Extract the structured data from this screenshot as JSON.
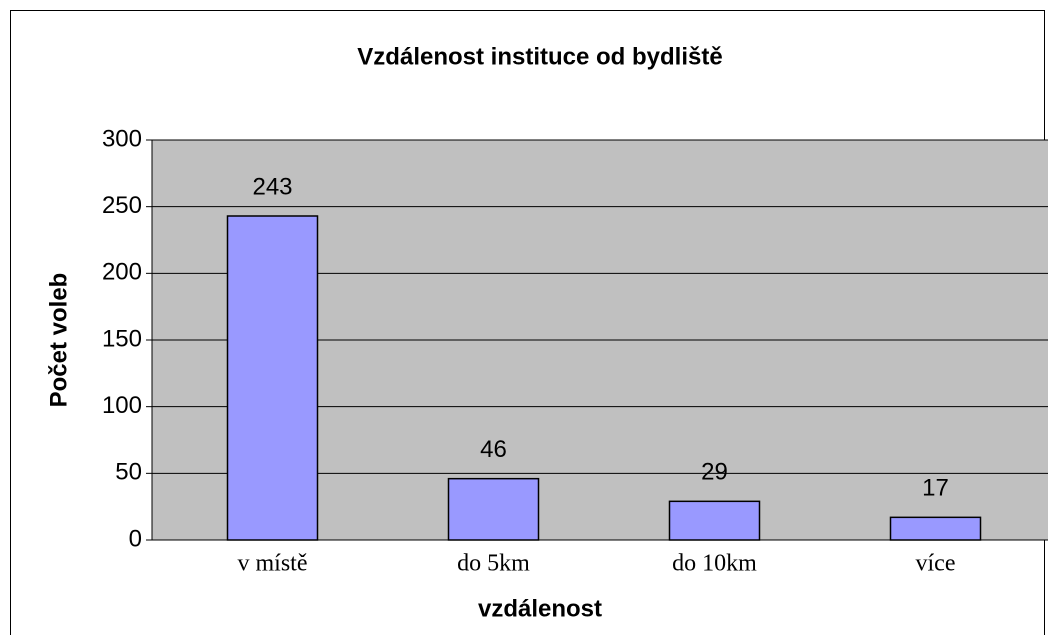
{
  "chart_data": {
    "type": "bar",
    "title": "Vzdálenost instituce od bydliště",
    "x_label": "vzdálenost",
    "y_label": "Počet voleb",
    "categories": [
      "v místě",
      "do 5km",
      "do 10km",
      "více"
    ],
    "values": [
      243,
      46,
      29,
      17
    ],
    "color": "#9999ff",
    "ylim": [
      0,
      300
    ],
    "yticks": [
      0,
      50,
      100,
      150,
      200,
      250,
      300
    ],
    "grid": true
  }
}
